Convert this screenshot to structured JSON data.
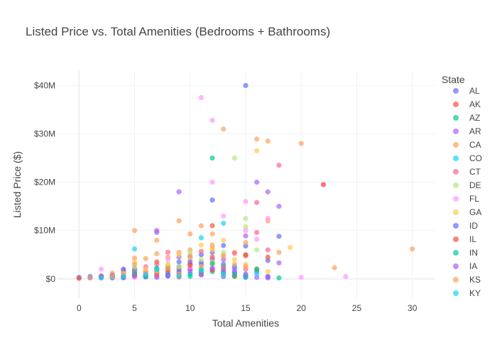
{
  "chart_data": {
    "type": "scatter",
    "title": "Listed Price vs. Total Amenities (Bedrooms + Bathrooms)",
    "xlabel": "Total Amenities",
    "ylabel": "Listed Price ($)",
    "xlim": [
      -2,
      32
    ],
    "ylim": [
      -4000000,
      43000000
    ],
    "x_ticks": [
      0,
      5,
      10,
      15,
      20,
      25,
      30
    ],
    "x_tick_labels": [
      "0",
      "5",
      "10",
      "15",
      "20",
      "25",
      "30"
    ],
    "y_ticks": [
      0,
      10000000,
      20000000,
      30000000,
      40000000
    ],
    "y_tick_labels": [
      "$0",
      "$10M",
      "$20M",
      "$30M",
      "$40M"
    ],
    "grid": true,
    "legend": {
      "title": "State",
      "placement": "right"
    },
    "series": [
      {
        "name": "AL",
        "color": "#636efa",
        "points": [
          [
            0,
            0.3
          ],
          [
            1,
            0.2
          ],
          [
            2,
            0.5
          ],
          [
            3,
            0.4
          ],
          [
            4,
            1.5
          ],
          [
            5,
            2.0
          ],
          [
            6,
            0.8
          ],
          [
            7,
            1.2
          ],
          [
            8,
            0.6
          ],
          [
            9,
            3.5
          ],
          [
            10,
            2.0
          ],
          [
            11,
            5.0
          ],
          [
            12,
            16.3
          ],
          [
            12,
            5.5
          ],
          [
            13,
            6.9
          ],
          [
            13,
            3.0
          ],
          [
            14,
            2.5
          ],
          [
            15,
            40.0
          ],
          [
            15,
            6.8
          ],
          [
            17,
            3.8
          ],
          [
            18,
            8.8
          ],
          [
            16,
            1.5
          ]
        ]
      },
      {
        "name": "AK",
        "color": "#ef553b",
        "points": [
          [
            3,
            0.6
          ],
          [
            4,
            1.0
          ],
          [
            5,
            0.5
          ],
          [
            6,
            1.5
          ],
          [
            7,
            3.5
          ],
          [
            8,
            2.0
          ],
          [
            9,
            2.5
          ],
          [
            10,
            3.0
          ],
          [
            11,
            1.5
          ],
          [
            12,
            11.0
          ],
          [
            12,
            4.5
          ],
          [
            13,
            2.0
          ],
          [
            15,
            5.0
          ],
          [
            16,
            2.0
          ],
          [
            17,
            4.5
          ],
          [
            22,
            19.5
          ]
        ]
      },
      {
        "name": "AZ",
        "color": "#00cc96",
        "points": [
          [
            3,
            0.8
          ],
          [
            4,
            0.5
          ],
          [
            5,
            1.0
          ],
          [
            6,
            0.8
          ],
          [
            7,
            1.5
          ],
          [
            8,
            2.5
          ],
          [
            9,
            2.0
          ],
          [
            10,
            1.0
          ],
          [
            11,
            2.0
          ],
          [
            12,
            25.0
          ],
          [
            12,
            1.5
          ],
          [
            13,
            2.5
          ],
          [
            14,
            0.5
          ],
          [
            15,
            0.8
          ],
          [
            16,
            2.0
          ],
          [
            18,
            0.2
          ]
        ]
      },
      {
        "name": "AR",
        "color": "#ab63fa",
        "points": [
          [
            2,
            0.3
          ],
          [
            4,
            1.8
          ],
          [
            5,
            2.0
          ],
          [
            6,
            0.5
          ],
          [
            7,
            10.0
          ],
          [
            7,
            9.6
          ],
          [
            8,
            1.0
          ],
          [
            9,
            18.0
          ],
          [
            9,
            4.5
          ],
          [
            10,
            4.5
          ],
          [
            11,
            3.5
          ],
          [
            12,
            4.0
          ],
          [
            13,
            4.0
          ],
          [
            14,
            1.5
          ],
          [
            15,
            8.9
          ],
          [
            16,
            20.0
          ],
          [
            17,
            18.0
          ],
          [
            17,
            0.5
          ],
          [
            18,
            15.0
          ],
          [
            18,
            3.3
          ],
          [
            16,
            0.3
          ]
        ]
      },
      {
        "name": "CA",
        "color": "#ffa15a",
        "points": [
          [
            3,
            1.2
          ],
          [
            4,
            1.5
          ],
          [
            5,
            10.0
          ],
          [
            5,
            4.3
          ],
          [
            6,
            4.2
          ],
          [
            7,
            8.0
          ],
          [
            7,
            5.2
          ],
          [
            8,
            4.5
          ],
          [
            9,
            12.0
          ],
          [
            9,
            5.5
          ],
          [
            10,
            9.3
          ],
          [
            10,
            6.0
          ],
          [
            11,
            11.0
          ],
          [
            12,
            9.3
          ],
          [
            12,
            6.3
          ],
          [
            13,
            31.0
          ],
          [
            13,
            5.0
          ],
          [
            14,
            5.5
          ],
          [
            15,
            7.5
          ],
          [
            16,
            28.9
          ],
          [
            17,
            28.5
          ],
          [
            17,
            12.0
          ],
          [
            18,
            5.5
          ],
          [
            20,
            28.0
          ],
          [
            23,
            2.3
          ],
          [
            30,
            6.2
          ],
          [
            12,
            3.0
          ]
        ]
      },
      {
        "name": "CO",
        "color": "#19d3f3",
        "points": [
          [
            3,
            0.4
          ],
          [
            5,
            6.2
          ],
          [
            5,
            1.5
          ],
          [
            6,
            0.5
          ],
          [
            7,
            1.2
          ],
          [
            9,
            2.5
          ],
          [
            10,
            1.0
          ],
          [
            11,
            8.5
          ],
          [
            13,
            11.5
          ],
          [
            14,
            2.5
          ],
          [
            16,
            1.0
          ]
        ]
      },
      {
        "name": "CT",
        "color": "#ff6692",
        "points": [
          [
            2,
            0.2
          ],
          [
            4,
            0.4
          ],
          [
            5,
            1.5
          ],
          [
            6,
            2.5
          ],
          [
            7,
            3.0
          ],
          [
            8,
            5.5
          ],
          [
            9,
            2.2
          ],
          [
            10,
            2.0
          ],
          [
            11,
            5.7
          ],
          [
            12,
            4.0
          ],
          [
            13,
            2.3
          ],
          [
            14,
            5.3
          ],
          [
            15,
            2.0
          ],
          [
            16,
            15.8
          ],
          [
            16,
            9.6
          ],
          [
            17,
            6.0
          ],
          [
            18,
            23.5
          ],
          [
            22,
            19.5
          ]
        ]
      },
      {
        "name": "DE",
        "color": "#b6e880",
        "points": [
          [
            4,
            0.6
          ],
          [
            5,
            2.5
          ],
          [
            6,
            1.0
          ],
          [
            7,
            1.8
          ],
          [
            8,
            3.0
          ],
          [
            9,
            2.5
          ],
          [
            10,
            5.5
          ],
          [
            11,
            4.0
          ],
          [
            12,
            3.5
          ],
          [
            13,
            5.5
          ],
          [
            14,
            25.0
          ],
          [
            15,
            12.5
          ],
          [
            15,
            10.8
          ],
          [
            16,
            6.0
          ]
        ]
      },
      {
        "name": "FL",
        "color": "#ff97ff",
        "points": [
          [
            2,
            2.0
          ],
          [
            3,
            0.5
          ],
          [
            4,
            0.8
          ],
          [
            5,
            0.3
          ],
          [
            6,
            2.0
          ],
          [
            7,
            0.5
          ],
          [
            8,
            4.0
          ],
          [
            9,
            0.7
          ],
          [
            10,
            2.5
          ],
          [
            11,
            37.5
          ],
          [
            12,
            32.8
          ],
          [
            12,
            20.0
          ],
          [
            13,
            13.0
          ],
          [
            15,
            16.0
          ],
          [
            15,
            10.0
          ],
          [
            16,
            8.2
          ],
          [
            17,
            12.5
          ],
          [
            20,
            0.3
          ],
          [
            24,
            0.5
          ]
        ]
      },
      {
        "name": "GA",
        "color": "#fecb52",
        "points": [
          [
            3,
            0.6
          ],
          [
            4,
            1.0
          ],
          [
            5,
            3.5
          ],
          [
            6,
            2.0
          ],
          [
            7,
            1.0
          ],
          [
            8,
            3.0
          ],
          [
            9,
            5.0
          ],
          [
            10,
            4.0
          ],
          [
            11,
            7.0
          ],
          [
            12,
            6.0
          ],
          [
            13,
            8.0
          ],
          [
            14,
            4.0
          ],
          [
            15,
            3.0
          ],
          [
            16,
            26.5
          ],
          [
            19,
            6.5
          ],
          [
            17,
            1.5
          ]
        ]
      },
      {
        "name": "ID",
        "color": "#636efa",
        "points": [
          [
            1,
            0.5
          ],
          [
            2,
            0.4
          ],
          [
            3,
            0.2
          ],
          [
            4,
            2.0
          ],
          [
            5,
            0.8
          ],
          [
            6,
            0.4
          ],
          [
            7,
            2.0
          ],
          [
            8,
            0.6
          ],
          [
            9,
            1.5
          ],
          [
            10,
            3.5
          ],
          [
            11,
            3.0
          ],
          [
            12,
            2.0
          ],
          [
            13,
            0.5
          ],
          [
            14,
            1.2
          ],
          [
            15,
            0.3
          ],
          [
            17,
            0.4
          ]
        ]
      },
      {
        "name": "IL",
        "color": "#ef553b",
        "points": [
          [
            0,
            0.1
          ],
          [
            2,
            0.6
          ],
          [
            4,
            0.5
          ],
          [
            5,
            1.0
          ],
          [
            6,
            0.7
          ],
          [
            7,
            0.8
          ],
          [
            8,
            1.5
          ],
          [
            9,
            0.4
          ],
          [
            10,
            2.8
          ],
          [
            11,
            0.9
          ],
          [
            12,
            1.8
          ],
          [
            13,
            1.2
          ],
          [
            14,
            0.6
          ],
          [
            15,
            4.8
          ]
        ]
      },
      {
        "name": "IN",
        "color": "#00cc96",
        "points": [
          [
            3,
            0.3
          ],
          [
            4,
            0.2
          ],
          [
            5,
            1.3
          ],
          [
            6,
            0.6
          ],
          [
            7,
            2.2
          ],
          [
            8,
            1.0
          ],
          [
            9,
            0.8
          ],
          [
            10,
            0.5
          ],
          [
            11,
            1.2
          ],
          [
            12,
            3.2
          ],
          [
            13,
            1.4
          ],
          [
            14,
            0.8
          ],
          [
            15,
            0.5
          ]
        ]
      },
      {
        "name": "IA",
        "color": "#ab63fa",
        "points": [
          [
            2,
            0.5
          ],
          [
            3,
            0.7
          ],
          [
            4,
            0.3
          ],
          [
            5,
            0.6
          ],
          [
            6,
            1.0
          ],
          [
            7,
            0.3
          ],
          [
            8,
            0.9
          ],
          [
            9,
            1.2
          ],
          [
            10,
            1.6
          ],
          [
            11,
            0.8
          ],
          [
            12,
            2.2
          ],
          [
            13,
            1.6
          ],
          [
            14,
            2.0
          ],
          [
            15,
            1.0
          ],
          [
            17,
            0.2
          ]
        ]
      },
      {
        "name": "KS",
        "color": "#ffa15a",
        "points": [
          [
            1,
            0.2
          ],
          [
            3,
            0.4
          ],
          [
            4,
            1.2
          ],
          [
            5,
            3.0
          ],
          [
            6,
            1.3
          ],
          [
            7,
            1.6
          ],
          [
            8,
            2.2
          ],
          [
            9,
            1.0
          ],
          [
            10,
            4.8
          ],
          [
            11,
            2.6
          ],
          [
            12,
            7.0
          ],
          [
            13,
            4.6
          ],
          [
            14,
            3.0
          ],
          [
            15,
            2.6
          ]
        ]
      },
      {
        "name": "KY",
        "color": "#19d3f3",
        "points": [
          [
            2,
            0.2
          ],
          [
            4,
            0.6
          ],
          [
            6,
            0.9
          ],
          [
            7,
            1.9
          ],
          [
            9,
            0.6
          ],
          [
            11,
            1.8
          ],
          [
            13,
            1.0
          ]
        ]
      }
    ]
  }
}
